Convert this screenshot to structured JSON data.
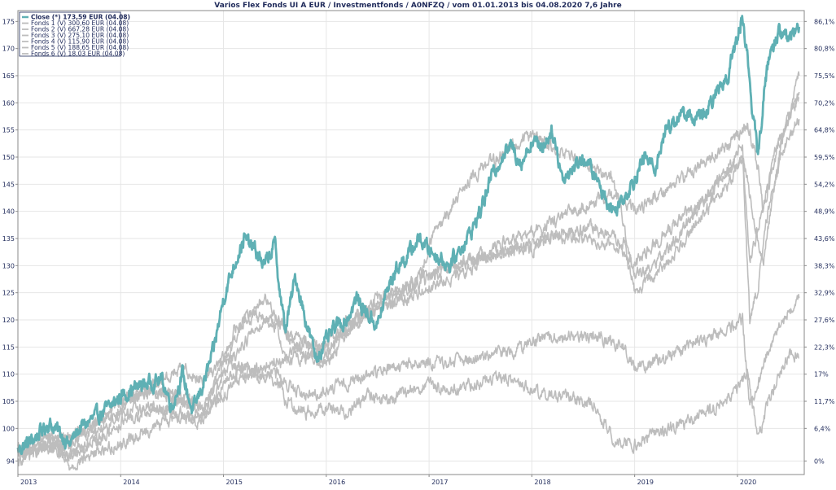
{
  "chart_data": {
    "type": "line",
    "title": "Varios Flex Fonds UI A EUR / Investmentfonds / A0NFZQ / vom 01.01.2013 bis 04.08.2020 7,6 Jahre",
    "xlabel": "",
    "ylabel": "",
    "x_ticks": [
      "2013",
      "2014",
      "2015",
      "2016",
      "2017",
      "2018",
      "2019",
      "2020"
    ],
    "y_ticks": [
      94,
      100,
      105,
      110,
      115,
      120,
      125,
      130,
      135,
      140,
      145,
      150,
      155,
      160,
      165,
      170,
      175
    ],
    "y_right_ticks": [
      "0%",
      "6,4%",
      "11,7%",
      "17%",
      "22,3%",
      "27,6%",
      "32,9%",
      "38,3%",
      "43,6%",
      "48,9%",
      "54,2%",
      "59,5%",
      "64,8%",
      "70,2%",
      "75,5%",
      "80,8%",
      "86,1%"
    ],
    "xlim": [
      2013.0,
      2020.65
    ],
    "ylim": [
      91.5,
      177
    ],
    "grid": true,
    "legend": "top-left",
    "colors": {
      "main": "#5fb0b4",
      "others": "#bdbdbd",
      "axis": "#1f2a5a",
      "grid": "#e6e6e6"
    },
    "legend_entries": [
      "Close (*) 173,59 EUR (04.08)",
      "Fonds 1 (V) 300,60 EUR (04.08)",
      "Fonds 2 (V) 667,28 EUR (04.08)",
      "Fonds 3 (V) 275,10 EUR (04.08)",
      "Fonds 4 (V) 115,90 EUR (04.08)",
      "Fonds 5 (V) 188,65 EUR (04.08)",
      "Fonds 6 (V) 18,03 EUR (04.08)"
    ],
    "series": [
      {
        "name": "Close (*)",
        "x": [
          2013.0,
          2013.15,
          2013.3,
          2013.42,
          2013.5,
          2013.6,
          2013.75,
          2013.9,
          2014.0,
          2014.2,
          2014.4,
          2014.5,
          2014.6,
          2014.7,
          2014.8,
          2014.9,
          2015.0,
          2015.1,
          2015.2,
          2015.3,
          2015.4,
          2015.5,
          2015.55,
          2015.6,
          2015.7,
          2015.8,
          2015.9,
          2016.0,
          2016.1,
          2016.2,
          2016.3,
          2016.4,
          2016.5,
          2016.6,
          2016.7,
          2016.8,
          2016.9,
          2017.0,
          2017.2,
          2017.4,
          2017.5,
          2017.6,
          2017.7,
          2017.8,
          2017.9,
          2018.0,
          2018.1,
          2018.2,
          2018.3,
          2018.5,
          2018.6,
          2018.7,
          2018.8,
          2018.97,
          2019.1,
          2019.2,
          2019.3,
          2019.4,
          2019.5,
          2019.6,
          2019.7,
          2019.8,
          2019.9,
          2020.0,
          2020.05,
          2020.1,
          2020.15,
          2020.2,
          2020.25,
          2020.3,
          2020.4,
          2020.5,
          2020.6
        ],
        "y": [
          96,
          98,
          101,
          99,
          97,
          100,
          102,
          104,
          106,
          108,
          109,
          104,
          110,
          103,
          108,
          114,
          124,
          130,
          135,
          133,
          130,
          134,
          125,
          118,
          128,
          120,
          113,
          116,
          119,
          120,
          124,
          121,
          119,
          126,
          130,
          132,
          135,
          133,
          130,
          136,
          140,
          146,
          150,
          152,
          149,
          153,
          152,
          155,
          146,
          150,
          147,
          143,
          140,
          145,
          150,
          148,
          155,
          157,
          158,
          157,
          158,
          162,
          165,
          172,
          176,
          168,
          158,
          150,
          160,
          168,
          173,
          172,
          174
        ]
      },
      {
        "name": "Fonds 1 (V)",
        "x": [
          2013.0,
          2013.3,
          2013.5,
          2013.8,
          2014.0,
          2014.3,
          2014.6,
          2014.8,
          2015.0,
          2015.1,
          2015.3,
          2015.5,
          2015.6,
          2015.8,
          2016.0,
          2016.2,
          2016.5,
          2016.8,
          2017.0,
          2017.3,
          2017.5,
          2017.7,
          2018.0,
          2018.2,
          2018.5,
          2018.8,
          2019.0,
          2019.3,
          2019.6,
          2019.9,
          2020.1,
          2020.2,
          2020.25,
          2020.35,
          2020.5,
          2020.6
        ],
        "y": [
          94,
          97,
          95,
          98,
          104,
          107,
          105,
          102,
          112,
          118,
          121,
          120,
          113,
          116,
          112,
          118,
          124,
          126,
          129,
          130,
          132,
          134,
          136,
          138,
          141,
          143,
          140,
          144,
          148,
          152,
          156,
          148,
          140,
          150,
          158,
          161
        ]
      },
      {
        "name": "Fonds 2 (V)",
        "x": [
          2013.0,
          2013.3,
          2013.5,
          2013.8,
          2014.0,
          2014.3,
          2014.6,
          2014.8,
          2015.0,
          2015.2,
          2015.4,
          2015.55,
          2015.7,
          2015.9,
          2016.0,
          2016.2,
          2016.5,
          2016.8,
          2017.0,
          2017.3,
          2017.5,
          2017.8,
          2018.0,
          2018.3,
          2018.6,
          2018.9,
          2019.0,
          2019.3,
          2019.6,
          2019.9,
          2020.05,
          2020.12,
          2020.2,
          2020.3,
          2020.45,
          2020.6
        ],
        "y": [
          95,
          99,
          98,
          102,
          105,
          107,
          106,
          104,
          112,
          120,
          124,
          120,
          115,
          112,
          113,
          120,
          122,
          124,
          126,
          128,
          131,
          133,
          134,
          136,
          137,
          134,
          125,
          130,
          138,
          145,
          150,
          120,
          126,
          140,
          152,
          157
        ]
      },
      {
        "name": "Fonds 3 (V)",
        "x": [
          2013.0,
          2013.3,
          2013.5,
          2013.8,
          2014.0,
          2014.3,
          2014.6,
          2014.8,
          2015.0,
          2015.2,
          2015.4,
          2015.6,
          2015.8,
          2016.0,
          2016.2,
          2016.5,
          2016.8,
          2017.0,
          2017.2,
          2017.4,
          2017.6,
          2017.8,
          2018.0,
          2018.2,
          2018.5,
          2018.8,
          2019.0,
          2019.3,
          2019.6,
          2019.9,
          2020.05,
          2020.15,
          2020.25,
          2020.4,
          2020.6
        ],
        "y": [
          95,
          96,
          98,
          100,
          103,
          104,
          102,
          101,
          110,
          116,
          120,
          118,
          116,
          114,
          118,
          122,
          125,
          128,
          129,
          131,
          132,
          133,
          133,
          135,
          135,
          134,
          130,
          136,
          141,
          147,
          150,
          140,
          130,
          150,
          165
        ]
      },
      {
        "name": "Fonds 4 (V)",
        "x": [
          2013.0,
          2013.3,
          2013.5,
          2013.8,
          2014.0,
          2014.3,
          2014.6,
          2014.8,
          2015.0,
          2015.2,
          2015.4,
          2015.55,
          2015.6,
          2015.8,
          2016.0,
          2016.2,
          2016.4,
          2016.6,
          2016.8,
          2017.0,
          2017.2,
          2017.4,
          2017.6,
          2017.8,
          2018.0,
          2018.2,
          2018.4,
          2018.6,
          2018.8,
          2018.97,
          2019.2,
          2019.5,
          2019.8,
          2020.0,
          2020.1,
          2020.2,
          2020.3,
          2020.5,
          2020.6
        ],
        "y": [
          95,
          97,
          93,
          96,
          97,
          100,
          103,
          102,
          108,
          112,
          110,
          110,
          105,
          103,
          104,
          103,
          106,
          105,
          107,
          108,
          107,
          108,
          109,
          109,
          107,
          106,
          106,
          104,
          98,
          97,
          99,
          101,
          104,
          107,
          110,
          98,
          105,
          114,
          113
        ]
      },
      {
        "name": "Fonds 5 (V)",
        "x": [
          2013.0,
          2013.3,
          2013.5,
          2013.8,
          2014.0,
          2014.3,
          2014.6,
          2014.8,
          2015.0,
          2015.2,
          2015.5,
          2015.8,
          2016.0,
          2016.3,
          2016.6,
          2016.9,
          2017.2,
          2017.5,
          2017.8,
          2018.0,
          2018.3,
          2018.6,
          2018.9,
          2019.0,
          2019.3,
          2019.6,
          2019.9,
          2020.05,
          2020.12,
          2020.2,
          2020.3,
          2020.45,
          2020.6
        ],
        "y": [
          95,
          99,
          97,
          102,
          105,
          108,
          111,
          109,
          113,
          110,
          109,
          106,
          107,
          109,
          111,
          112,
          112,
          113,
          114,
          116,
          117,
          117,
          115,
          111,
          113,
          116,
          118,
          120,
          104,
          108,
          115,
          120,
          124
        ]
      },
      {
        "name": "Fonds 6 (V)",
        "x": [
          2013.0,
          2013.3,
          2013.5,
          2013.8,
          2014.0,
          2014.3,
          2014.6,
          2014.8,
          2015.0,
          2015.2,
          2015.5,
          2015.8,
          2016.0,
          2016.3,
          2016.6,
          2016.9,
          2017.0,
          2017.2,
          2017.4,
          2017.6,
          2017.8,
          2018.0,
          2018.2,
          2018.4,
          2018.6,
          2018.8,
          2019.0,
          2019.3,
          2019.6,
          2019.9,
          2020.05,
          2020.12,
          2020.2,
          2020.3,
          2020.45,
          2020.6
        ],
        "y": [
          96,
          97,
          95,
          98,
          101,
          103,
          105,
          104,
          106,
          110,
          112,
          113,
          116,
          120,
          124,
          128,
          134,
          140,
          146,
          149,
          152,
          154,
          152,
          150,
          148,
          146,
          128,
          132,
          140,
          148,
          152,
          130,
          137,
          145,
          155,
          162
        ]
      }
    ]
  }
}
